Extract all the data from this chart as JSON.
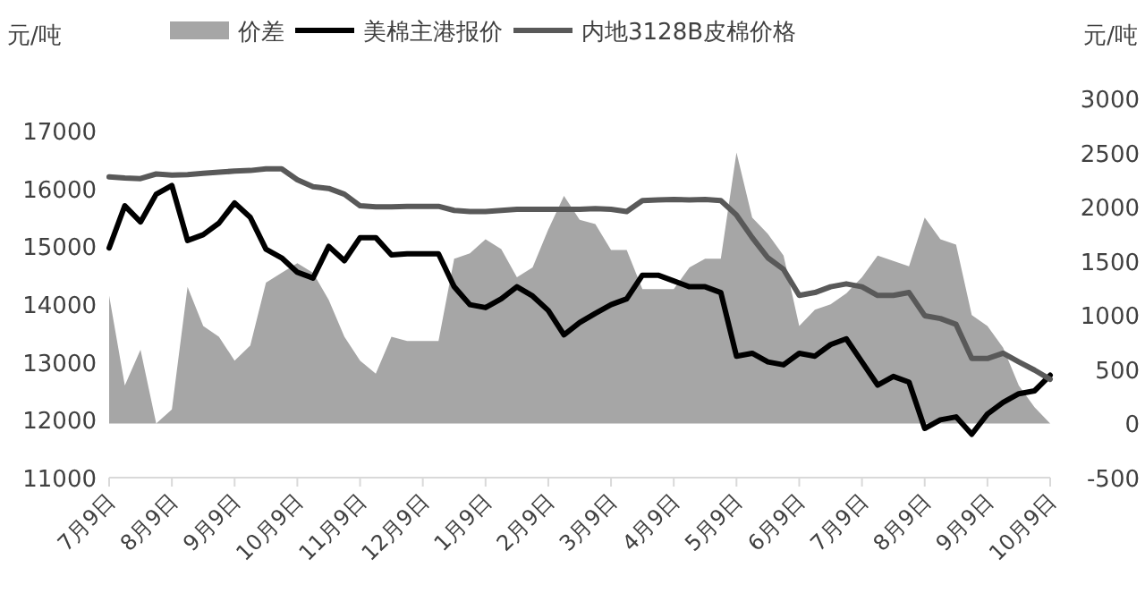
{
  "chart_data": {
    "type": "line",
    "ylabel": "元/吨",
    "y2label": "元/吨",
    "legend": "top",
    "categories": [
      "7月9日",
      null,
      null,
      null,
      "8月9日",
      null,
      null,
      null,
      "9月9日",
      null,
      null,
      null,
      "10月9日",
      null,
      null,
      null,
      "11月9日",
      null,
      null,
      null,
      "12月9日",
      null,
      null,
      null,
      "1月9日",
      null,
      null,
      null,
      "2月9日",
      null,
      null,
      null,
      "3月9日",
      null,
      null,
      null,
      "4月9日",
      null,
      null,
      null,
      "5月9日",
      null,
      null,
      null,
      "6月9日",
      null,
      null,
      null,
      "7月9日",
      null,
      null,
      null,
      "8月9日",
      null,
      null,
      null,
      "9月9日",
      null,
      null,
      null,
      "10月9日"
    ],
    "ylim": [
      11000,
      17000
    ],
    "yticks": [
      11000,
      12000,
      13000,
      14000,
      15000,
      16000,
      17000
    ],
    "y2lim": [
      -500,
      3000
    ],
    "y2ticks": [
      -500,
      0,
      500,
      1000,
      1500,
      2000,
      2500,
      3000
    ],
    "series": [
      {
        "name": "价差",
        "type": "area",
        "axis": "y2",
        "color": "#a6a6a6",
        "values": [
          1180,
          350,
          680,
          0,
          130,
          1260,
          900,
          800,
          580,
          720,
          1300,
          1390,
          1480,
          1390,
          1140,
          800,
          580,
          460,
          800,
          760,
          760,
          760,
          1520,
          1570,
          1700,
          1610,
          1350,
          1440,
          1790,
          2100,
          1880,
          1840,
          1600,
          1600,
          1240,
          1240,
          1240,
          1440,
          1520,
          1520,
          2500,
          1900,
          1750,
          1550,
          900,
          1050,
          1100,
          1200,
          1350,
          1550,
          1500,
          1450,
          1900,
          1700,
          1650,
          1000,
          900,
          700,
          350,
          150,
          0
        ]
      },
      {
        "name": "美棉主港报价",
        "color": "#000000",
        "values": [
          14970,
          15700,
          15420,
          15900,
          16050,
          15100,
          15200,
          15400,
          15750,
          15500,
          14950,
          14800,
          14550,
          14450,
          15000,
          14750,
          15150,
          15150,
          14850,
          14870,
          14870,
          14870,
          14300,
          13990,
          13940,
          14090,
          14300,
          14140,
          13890,
          13470,
          13680,
          13840,
          13990,
          14090,
          14500,
          14500,
          14400,
          14300,
          14300,
          14200,
          13100,
          13150,
          13000,
          12950,
          13150,
          13100,
          13300,
          13400,
          13000,
          12600,
          12750,
          12650,
          11850,
          12000,
          12050,
          11750,
          12100,
          12300,
          12450,
          12500,
          12770
        ]
      },
      {
        "name": "内地3128B皮棉价格",
        "color": "#595959",
        "values": [
          16200,
          16180,
          16170,
          16250,
          16230,
          16240,
          16260,
          16280,
          16300,
          16310,
          16340,
          16340,
          16150,
          16030,
          16000,
          15900,
          15700,
          15680,
          15680,
          15690,
          15690,
          15690,
          15620,
          15600,
          15600,
          15620,
          15640,
          15640,
          15640,
          15640,
          15640,
          15650,
          15640,
          15600,
          15790,
          15800,
          15810,
          15800,
          15810,
          15790,
          15540,
          15150,
          14800,
          14600,
          14150,
          14200,
          14300,
          14350,
          14300,
          14150,
          14150,
          14200,
          13800,
          13750,
          13650,
          13060,
          13060,
          13150,
          13000,
          12860,
          12700
        ]
      }
    ]
  }
}
